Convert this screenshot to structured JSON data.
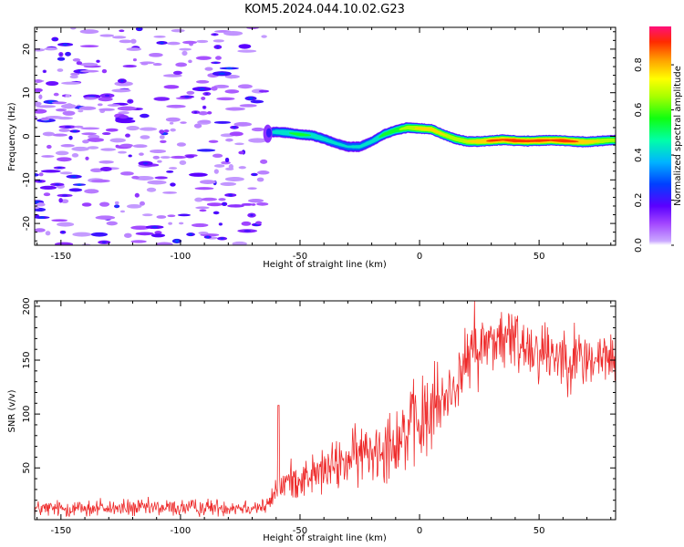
{
  "title": "KOM5.2024.044.10.02.G23",
  "chart_data": [
    {
      "type": "heatmap",
      "xlabel": "Height of straight line (km)",
      "ylabel": "Frequency (Hz)",
      "xlim": [
        -161,
        82
      ],
      "ylim": [
        -25,
        25
      ],
      "x_ticks": [
        -150,
        -100,
        -50,
        0,
        50
      ],
      "y_ticks": [
        -20,
        -10,
        0,
        10,
        20
      ],
      "x_tick_labels": [
        "-150",
        "-100",
        "-50",
        "0",
        "50"
      ],
      "y_tick_labels": [
        "-20",
        "-10",
        "0",
        "10",
        "20"
      ],
      "colorbar": {
        "label": "Normalized spectral amplitude",
        "range": [
          0,
          0.97
        ],
        "ticks": [
          0,
          0.2,
          0.4,
          0.6,
          0.8
        ],
        "tick_labels": [
          "0.0",
          "0.2",
          "0.4",
          "0.6",
          "0.8"
        ],
        "colormap": "gist_rainbow_r",
        "low_color": "#ffffff"
      },
      "noise_region": {
        "x_range": [
          -161,
          -65
        ],
        "amplitude_range": [
          0.0,
          0.2
        ]
      },
      "signal_ridge": {
        "x": [
          -65,
          -60,
          -55,
          -50,
          -45,
          -40,
          -35,
          -30,
          -25,
          -20,
          -15,
          -10,
          -5,
          0,
          5,
          10,
          15,
          20,
          25,
          30,
          35,
          40,
          45,
          50,
          55,
          60,
          65,
          70,
          75,
          80,
          82
        ],
        "frequency": [
          0.8,
          1.0,
          0.8,
          0.4,
          0.2,
          -0.6,
          -1.6,
          -2.4,
          -2.4,
          -1.2,
          0.4,
          1.4,
          2.0,
          1.8,
          1.6,
          0.4,
          -0.6,
          -1.2,
          -1.2,
          -1.0,
          -0.8,
          -1.0,
          -1.1,
          -1.0,
          -0.9,
          -1.0,
          -1.2,
          -1.3,
          -1.1,
          -0.9,
          -0.9
        ],
        "amplitude": [
          0.3,
          0.45,
          0.5,
          0.55,
          0.5,
          0.45,
          0.42,
          0.4,
          0.42,
          0.45,
          0.55,
          0.6,
          0.7,
          0.78,
          0.8,
          0.75,
          0.72,
          0.75,
          0.82,
          0.9,
          0.88,
          0.95,
          0.9,
          0.92,
          0.88,
          0.95,
          0.88,
          0.82,
          0.75,
          0.7,
          0.7
        ],
        "halfwidth_hz": 1.1
      }
    },
    {
      "type": "line",
      "xlabel": "Height of straight line (km)",
      "ylabel": "SNR (v/v)",
      "xlim": [
        -161,
        82
      ],
      "ylim": [
        2,
        205
      ],
      "x_ticks": [
        -150,
        -100,
        -50,
        0,
        50
      ],
      "y_ticks": [
        50,
        100,
        150,
        200
      ],
      "x_tick_labels": [
        "-150",
        "-100",
        "-50",
        "0",
        "50"
      ],
      "y_tick_labels": [
        "50",
        "100",
        "150",
        "200"
      ],
      "color": "#ee2a2a",
      "trend": {
        "x": [
          -161,
          -100,
          -64,
          -62,
          -60,
          -55,
          -50,
          -40,
          -30,
          -20,
          -10,
          0,
          10,
          15,
          20,
          30,
          40,
          50,
          60,
          70,
          82
        ],
        "y": [
          12,
          13,
          14,
          20,
          30,
          38,
          40,
          47,
          57,
          67,
          78,
          90,
          112,
          128,
          150,
          170,
          168,
          160,
          155,
          150,
          152
        ]
      },
      "spike": {
        "x": -59,
        "y": 108
      },
      "peak": {
        "x": 23,
        "y": 205
      }
    }
  ]
}
